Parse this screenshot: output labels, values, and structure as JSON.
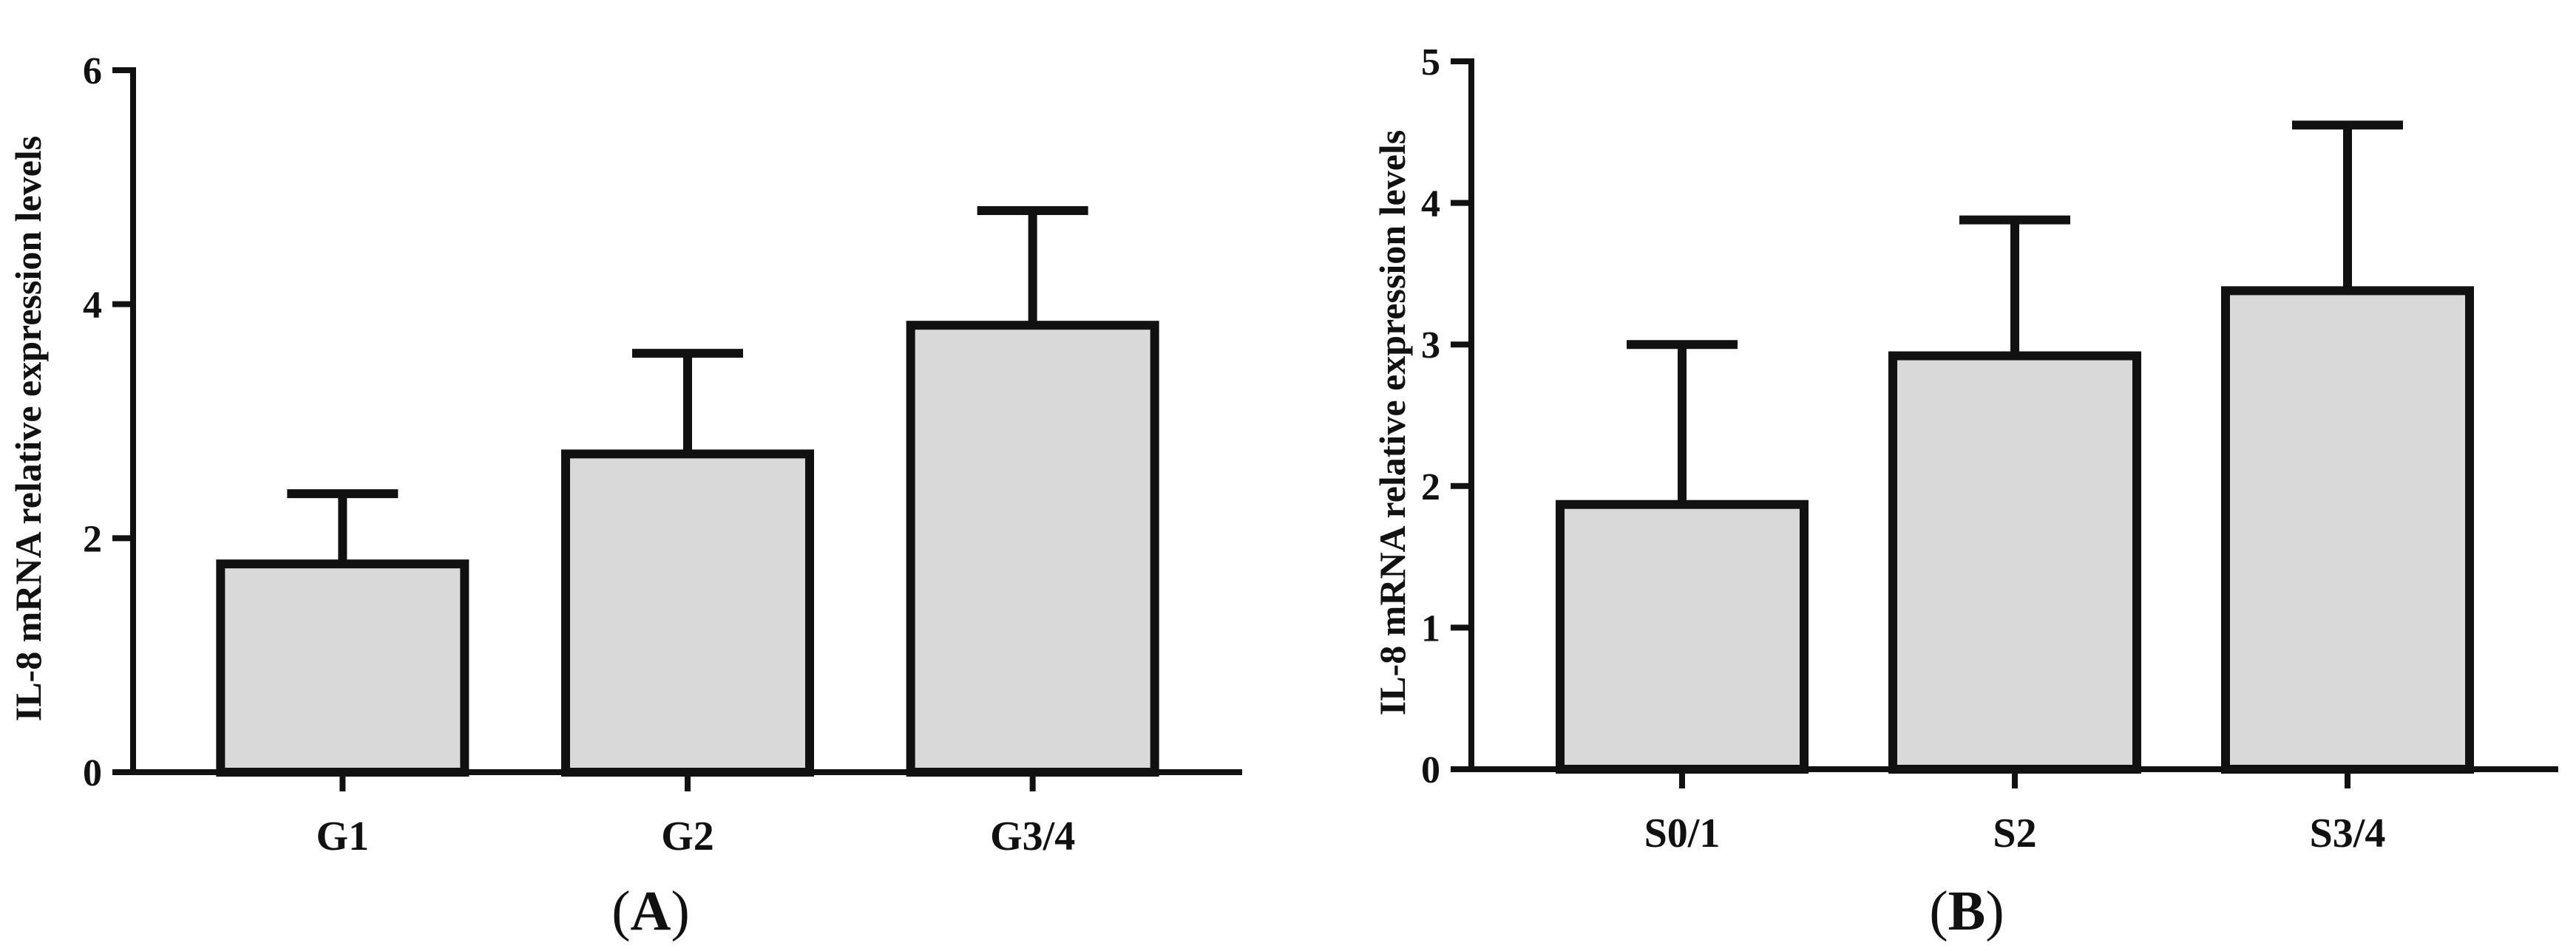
{
  "chart_data": [
    {
      "panel_label_open": "(",
      "panel_label_letter": "A",
      "panel_label_close": ")",
      "type": "bar",
      "categories": [
        "G1",
        "G2",
        "G3/4"
      ],
      "values": [
        1.78,
        2.72,
        3.82
      ],
      "error_upper": [
        2.38,
        3.58,
        4.8
      ],
      "title": "",
      "xlabel": "",
      "ylabel": "IL-8 mRNA relative expression levels",
      "ylim": [
        0,
        6
      ],
      "yticks": [
        0,
        2,
        4,
        6
      ],
      "grid": false,
      "bar_fill": "#d9d9d9",
      "bar_stroke": "#111111"
    },
    {
      "panel_label_open": "(",
      "panel_label_letter": "B",
      "panel_label_close": ")",
      "type": "bar",
      "categories": [
        "S0/1",
        "S2",
        "S3/4"
      ],
      "values": [
        1.87,
        2.92,
        3.38
      ],
      "error_upper": [
        3.0,
        3.88,
        4.55
      ],
      "title": "",
      "xlabel": "",
      "ylabel": "IL-8 mRNA relative expression levels",
      "ylim": [
        0,
        5
      ],
      "yticks": [
        0,
        1,
        2,
        3,
        4,
        5
      ],
      "grid": false,
      "bar_fill": "#d9d9d9",
      "bar_stroke": "#111111"
    }
  ]
}
